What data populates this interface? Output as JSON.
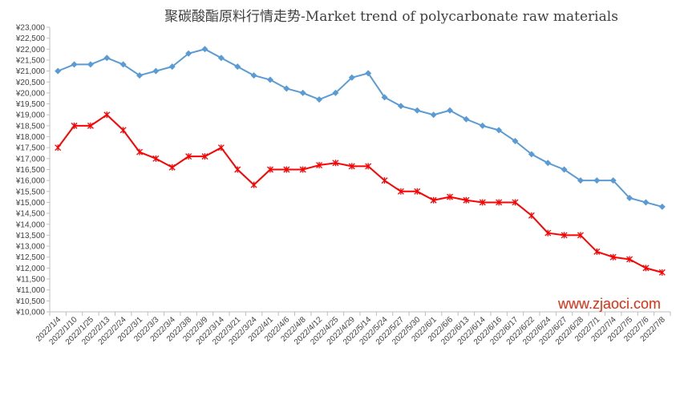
{
  "chart_data": {
    "type": "line",
    "title": "聚碳酸酯原料行情走势-Market trend of polycarbonate raw materials",
    "xlabel": "",
    "ylabel": "",
    "ylim": [
      10000,
      23000
    ],
    "ytick_step": 500,
    "ytick_labels": [
      "¥10,000",
      "¥10,500",
      "¥11,000",
      "¥11,500",
      "¥12,000",
      "¥12,500",
      "¥13,000",
      "¥13,500",
      "¥14,000",
      "¥14,500",
      "¥15,000",
      "¥15,500",
      "¥16,000",
      "¥16,500",
      "¥17,000",
      "¥17,500",
      "¥18,000",
      "¥18,500",
      "¥19,000",
      "¥19,500",
      "¥20,000",
      "¥20,500",
      "¥21,000",
      "¥21,500",
      "¥22,000",
      "¥22,500",
      "¥23,000"
    ],
    "categories": [
      "2022/1/4",
      "2022/1/10",
      "2022/1/25",
      "2022/2/13",
      "2022/2/24",
      "2022/3/1",
      "2022/3/3",
      "2022/3/4",
      "2022/3/8",
      "2022/3/9",
      "2022/3/14",
      "2022/3/21",
      "2022/3/24",
      "2022/4/1",
      "2022/4/6",
      "2022/4/8",
      "2022/4/12",
      "2022/4/25",
      "2022/4/29",
      "2022/5/14",
      "2022/5/24",
      "2022/5/27",
      "2022/5/30",
      "2022/6/1",
      "2022/6/6",
      "2022/6/13",
      "2022/6/14",
      "2022/6/16",
      "2022/6/17",
      "2022/6/22",
      "2022/6/24",
      "2022/6/27",
      "2022/6/28",
      "2022/7/1",
      "2022/7/4",
      "2022/7/5",
      "2022/7/6",
      "2022/7/8"
    ],
    "series": [
      {
        "color": "#5b9bd5",
        "marker": "diamond",
        "values": [
          21000,
          21300,
          21300,
          21600,
          21300,
          20800,
          21000,
          21200,
          21800,
          22000,
          21600,
          21200,
          20800,
          20600,
          20200,
          20000,
          19700,
          20000,
          20700,
          20900,
          19800,
          19400,
          19200,
          19000,
          19200,
          18800,
          18500,
          18300,
          17800,
          17200,
          16800,
          16500,
          16000,
          16000,
          16000,
          15200,
          15000,
          14800
        ]
      },
      {
        "color": "#ff0000",
        "marker": "star",
        "values": [
          17500,
          18500,
          18500,
          19000,
          18300,
          17300,
          17000,
          16600,
          17100,
          17100,
          17500,
          16500,
          15800,
          16500,
          16500,
          16500,
          16700,
          16800,
          16650,
          16650,
          16000,
          15500,
          15500,
          15100,
          15250,
          15100,
          15000,
          15000,
          15000,
          14400,
          13600,
          13500,
          13500,
          12750,
          12500,
          12400,
          12000,
          11800
        ]
      }
    ],
    "grid": false,
    "legend": "none",
    "watermark": "www.zjaoci.com"
  }
}
